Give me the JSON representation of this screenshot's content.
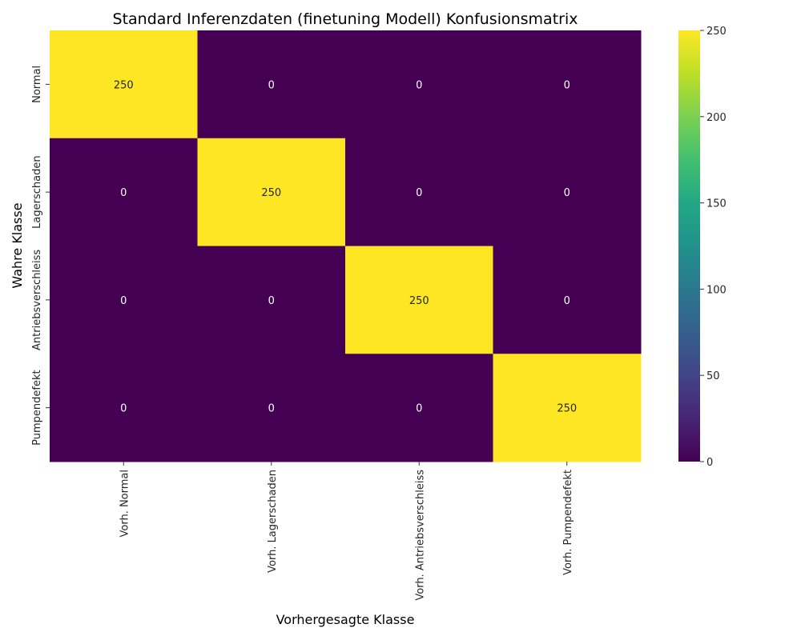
{
  "chart_data": {
    "type": "heatmap",
    "title": "Standard Inferenzdaten (finetuning Modell) Konfusionsmatrix",
    "xlabel": "Vorhergesagte Klasse",
    "ylabel": "Wahre Klasse",
    "x_categories": [
      "Vorh. Normal",
      "Vorh. Lagerschaden",
      "Vorh. Antriebsverschleiss",
      "Vorh. Pumpendefekt"
    ],
    "y_categories": [
      "Normal",
      "Lagerschaden",
      "Antriebsverschleiss",
      "Pumpendefekt"
    ],
    "values": [
      [
        250,
        0,
        0,
        0
      ],
      [
        0,
        250,
        0,
        0
      ],
      [
        0,
        0,
        250,
        0
      ],
      [
        0,
        0,
        0,
        250
      ]
    ],
    "colormap": "viridis",
    "colorbar": {
      "min": 0,
      "max": 250,
      "ticks": [
        0,
        50,
        100,
        150,
        200,
        250
      ]
    },
    "annotations": true,
    "low_color": "#440154",
    "high_color": "#fde725"
  }
}
